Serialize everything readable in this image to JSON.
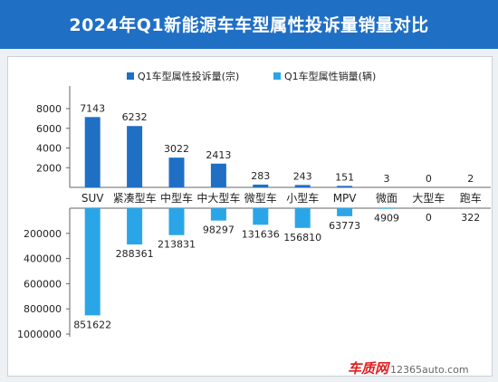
{
  "title": "2024年Q1新能源车车型属性投诉量销量对比",
  "colors": {
    "title_bg": "#1f6fc5",
    "complaints": "#1f6fc5",
    "sales": "#2aa6e8"
  },
  "brand": {
    "logo": "车质网",
    "url": "12365auto.com"
  },
  "chart_data": {
    "type": "bar",
    "categories": [
      "SUV",
      "紧凑型车",
      "中型车",
      "中大型车",
      "微型车",
      "小型车",
      "MPV",
      "微面",
      "大型车",
      "跑车"
    ],
    "series": [
      {
        "name": "Q1车型属性投诉量(宗)",
        "values": [
          7143,
          6232,
          3022,
          2413,
          283,
          243,
          151,
          3,
          0,
          2
        ],
        "direction": "up"
      },
      {
        "name": "Q1车型属性销量(辆)",
        "values": [
          851622,
          288361,
          213831,
          98297,
          131636,
          156810,
          63773,
          4909,
          0,
          322
        ],
        "direction": "down"
      }
    ],
    "upper_axis": {
      "ylim": [
        0,
        8000
      ],
      "ticks": [
        "8000",
        "6000",
        "4000",
        "2000"
      ]
    },
    "lower_axis": {
      "ylim": [
        0,
        1000000
      ],
      "ticks": [
        "200000",
        "400000",
        "600000",
        "800000",
        "1000000"
      ]
    },
    "legend": "top-center"
  }
}
